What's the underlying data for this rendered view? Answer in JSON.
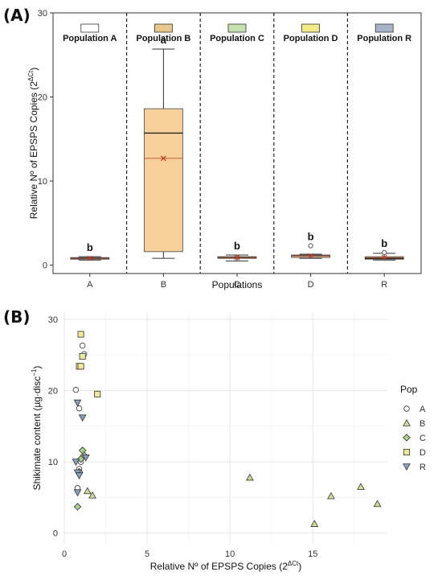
{
  "chart_data": [
    {
      "panel": "(A)",
      "type": "box",
      "xlabel": "Populations",
      "ylabel": "Relative Nº of EPSPS Copies (2",
      "ylabel_sup": "ΔCt",
      "ylabel_close": ")",
      "ylim": [
        -1,
        30
      ],
      "yticks": [
        0,
        10,
        20,
        30
      ],
      "categories": [
        "A",
        "B",
        "C",
        "D",
        "R"
      ],
      "legend": [
        {
          "name": "Population A",
          "color": "#ffffff"
        },
        {
          "name": "Population B",
          "color": "#e8c88a"
        },
        {
          "name": "Population C",
          "color": "#c7e0b0"
        },
        {
          "name": "Population D",
          "color": "#f1ea86"
        },
        {
          "name": "Population R",
          "color": "#a9b3c8"
        }
      ],
      "boxes": [
        {
          "category": "A",
          "whisker_low": 0.6,
          "q1": 0.7,
          "median": 0.8,
          "q3": 0.9,
          "whisker_high": 1.0,
          "mean": 0.8,
          "letter": "b",
          "outliers": []
        },
        {
          "category": "B",
          "whisker_low": 0.8,
          "q1": 1.6,
          "median": 15.7,
          "q3": 18.6,
          "whisker_high": 25.7,
          "mean": 12.7,
          "letter": "a",
          "outliers": []
        },
        {
          "category": "C",
          "whisker_low": 0.5,
          "q1": 0.8,
          "median": 0.9,
          "q3": 1.0,
          "whisker_high": 1.2,
          "mean": 0.9,
          "letter": "b",
          "outliers": []
        },
        {
          "category": "D",
          "whisker_low": 0.8,
          "q1": 0.9,
          "median": 1.1,
          "q3": 1.2,
          "whisker_high": 1.3,
          "mean": 1.1,
          "letter": "b",
          "outliers": [
            2.3
          ]
        },
        {
          "category": "R",
          "whisker_low": 0.6,
          "q1": 0.7,
          "median": 0.8,
          "q3": 1.0,
          "whisker_high": 1.4,
          "mean": 0.9,
          "letter": "b",
          "outliers": [
            1.5
          ]
        }
      ]
    },
    {
      "panel": "(B)",
      "type": "scatter",
      "xlabel": "Relative Nº of EPSPS Copies (2",
      "xlabel_sup": "ΔCt",
      "xlabel_close": ")",
      "ylabel": "Shikimate content (µg·disc",
      "ylabel_sup": "−1",
      "ylabel_close": ")",
      "xlim": [
        0,
        19.5
      ],
      "ylim": [
        -1.5,
        31
      ],
      "xticks": [
        0,
        5,
        10,
        15
      ],
      "yticks": [
        0,
        10,
        20,
        30
      ],
      "legend_title": "Pop",
      "series": [
        {
          "name": "A",
          "shape": "circle",
          "color": "#ffffff",
          "points": [
            [
              0.7,
              20.1
            ],
            [
              0.9,
              17.5
            ],
            [
              1.1,
              26.3
            ],
            [
              1.2,
              25.1
            ],
            [
              1.0,
              10.0
            ],
            [
              0.8,
              6.3
            ],
            [
              0.9,
              9.0
            ]
          ]
        },
        {
          "name": "B",
          "shape": "triangle",
          "color": "#d4d89a",
          "points": [
            [
              1.4,
              5.9
            ],
            [
              1.7,
              5.3
            ],
            [
              11.2,
              7.8
            ],
            [
              15.1,
              1.3
            ],
            [
              16.1,
              5.2
            ],
            [
              17.9,
              6.5
            ],
            [
              18.9,
              4.1
            ]
          ]
        },
        {
          "name": "C",
          "shape": "diamond",
          "color": "#a9d18e",
          "points": [
            [
              0.8,
              3.7
            ],
            [
              1.1,
              11.6
            ],
            [
              1.0,
              10.4
            ],
            [
              0.9,
              8.6
            ],
            [
              1.2,
              10.9
            ]
          ]
        },
        {
          "name": "D",
          "shape": "square",
          "color": "#eeea9a",
          "points": [
            [
              1.0,
              27.9
            ],
            [
              1.1,
              24.8
            ],
            [
              0.9,
              23.4
            ],
            [
              1.0,
              23.4
            ],
            [
              2.0,
              19.5
            ]
          ]
        },
        {
          "name": "R",
          "shape": "triangle-down",
          "color": "#8aa0c0",
          "points": [
            [
              0.8,
              18.3
            ],
            [
              1.1,
              16.2
            ],
            [
              0.7,
              10.0
            ],
            [
              0.8,
              8.5
            ],
            [
              0.9,
              8.1
            ],
            [
              1.3,
              10.6
            ],
            [
              0.8,
              5.7
            ]
          ]
        }
      ]
    }
  ]
}
